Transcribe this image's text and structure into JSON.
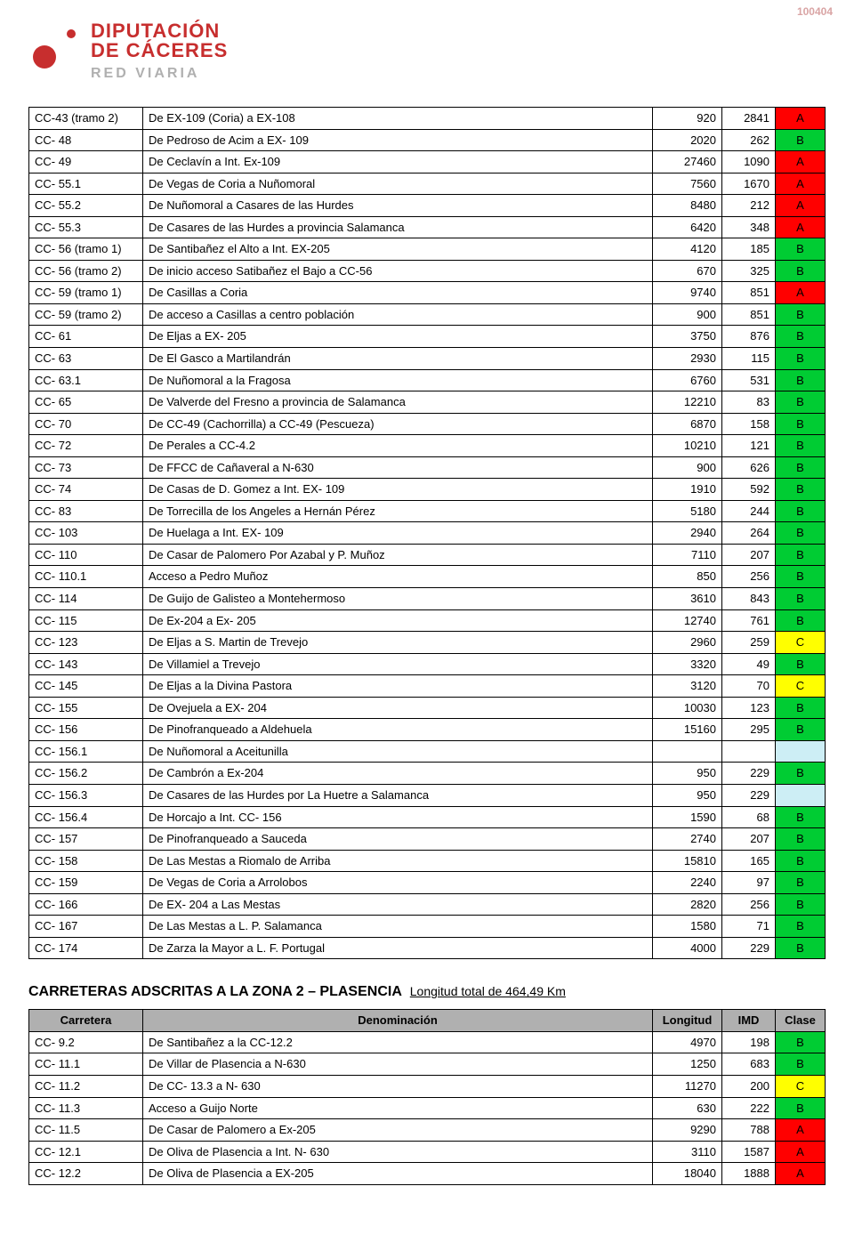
{
  "page_number": "100404",
  "header": {
    "brand_line1": "DIPUTACIÓN",
    "brand_line2": "DE CÁCERES",
    "subtitle": "RED VIARIA"
  },
  "colors": {
    "A": "#ff0000",
    "B": "#00cc33",
    "C": "#ffff00",
    "empty": "#cdeef5",
    "header_bg": "#b0b0b0"
  },
  "table1": {
    "rows": [
      {
        "code": "CC-43 (tramo 2)",
        "name": "De EX-109 (Coria) a EX-108",
        "long": "920",
        "imd": "2841",
        "class": "A"
      },
      {
        "code": "CC- 48",
        "name": "De Pedroso de Acim a EX- 109",
        "long": "2020",
        "imd": "262",
        "class": "B"
      },
      {
        "code": "CC- 49",
        "name": "De Ceclavín a Int. Ex-109",
        "long": "27460",
        "imd": "1090",
        "class": "A"
      },
      {
        "code": "CC- 55.1",
        "name": "De Vegas de Coria a Nuñomoral",
        "long": "7560",
        "imd": "1670",
        "class": "A"
      },
      {
        "code": "CC- 55.2",
        "name": "De Nuñomoral a Casares de las Hurdes",
        "long": "8480",
        "imd": "212",
        "class": "A"
      },
      {
        "code": "CC- 55.3",
        "name": "De Casares de las Hurdes a provincia Salamanca",
        "long": "6420",
        "imd": "348",
        "class": "A"
      },
      {
        "code": "CC- 56 (tramo 1)",
        "name": "De Santibañez el Alto a Int. EX-205",
        "long": "4120",
        "imd": "185",
        "class": "B"
      },
      {
        "code": "CC- 56 (tramo 2)",
        "name": "De inicio acceso Satibañez el Bajo a CC-56",
        "long": "670",
        "imd": "325",
        "class": "B"
      },
      {
        "code": "CC- 59 (tramo 1)",
        "name": "De Casillas a Coria",
        "long": "9740",
        "imd": "851",
        "class": "A"
      },
      {
        "code": "CC- 59 (tramo 2)",
        "name": "De acceso a Casillas a centro población",
        "long": "900",
        "imd": "851",
        "class": "B"
      },
      {
        "code": "CC- 61",
        "name": "De Eljas a EX- 205",
        "long": "3750",
        "imd": "876",
        "class": "B"
      },
      {
        "code": "CC- 63",
        "name": "De El Gasco a Martilandrán",
        "long": "2930",
        "imd": "115",
        "class": "B"
      },
      {
        "code": "CC- 63.1",
        "name": "De Nuñomoral a la Fragosa",
        "long": "6760",
        "imd": "531",
        "class": "B"
      },
      {
        "code": "CC- 65",
        "name": "De Valverde del Fresno a provincia de Salamanca",
        "long": "12210",
        "imd": "83",
        "class": "B"
      },
      {
        "code": "CC- 70",
        "name": "De CC-49 (Cachorrilla) a CC-49 (Pescueza)",
        "long": "6870",
        "imd": "158",
        "class": "B"
      },
      {
        "code": "CC- 72",
        "name": "De Perales a CC-4.2",
        "long": "10210",
        "imd": "121",
        "class": "B"
      },
      {
        "code": "CC- 73",
        "name": "De FFCC de Cañaveral a N-630",
        "long": "900",
        "imd": "626",
        "class": "B"
      },
      {
        "code": "CC- 74",
        "name": "De Casas de D. Gomez a Int. EX- 109",
        "long": "1910",
        "imd": "592",
        "class": "B"
      },
      {
        "code": "CC- 83",
        "name": "De Torrecilla de los Angeles a Hernán Pérez",
        "long": "5180",
        "imd": "244",
        "class": "B"
      },
      {
        "code": "CC- 103",
        "name": "De Huelaga a Int. EX- 109",
        "long": "2940",
        "imd": "264",
        "class": "B"
      },
      {
        "code": "CC- 110",
        "name": "De Casar de Palomero Por Azabal y P. Muñoz",
        "long": "7110",
        "imd": "207",
        "class": "B"
      },
      {
        "code": "CC- 110.1",
        "name": "Acceso a Pedro Muñoz",
        "long": "850",
        "imd": "256",
        "class": "B"
      },
      {
        "code": "CC- 114",
        "name": "De Guijo de Galisteo a Montehermoso",
        "long": "3610",
        "imd": "843",
        "class": "B"
      },
      {
        "code": "CC- 115",
        "name": "De Ex-204 a Ex- 205",
        "long": "12740",
        "imd": "761",
        "class": "B"
      },
      {
        "code": "CC- 123",
        "name": "De Eljas a S. Martin de Trevejo",
        "long": "2960",
        "imd": "259",
        "class": "C"
      },
      {
        "code": "CC- 143",
        "name": "De Villamiel a Trevejo",
        "long": "3320",
        "imd": "49",
        "class": "B"
      },
      {
        "code": "CC- 145",
        "name": "De Eljas a la Divina Pastora",
        "long": "3120",
        "imd": "70",
        "class": "C"
      },
      {
        "code": "CC- 155",
        "name": "De Ovejuela a EX- 204",
        "long": "10030",
        "imd": "123",
        "class": "B"
      },
      {
        "code": "CC- 156",
        "name": "De Pinofranqueado a Aldehuela",
        "long": "15160",
        "imd": "295",
        "class": "B"
      },
      {
        "code": "CC- 156.1",
        "name": "De Nuñomoral a Aceitunilla",
        "long": "",
        "imd": "",
        "class": ""
      },
      {
        "code": "CC- 156.2",
        "name": "De Cambrón a Ex-204",
        "long": "950",
        "imd": "229",
        "class": "B"
      },
      {
        "code": "CC- 156.3",
        "name": "De Casares de las Hurdes por La Huetre a Salamanca",
        "long": "950",
        "imd": "229",
        "class": ""
      },
      {
        "code": "CC- 156.4",
        "name": "De Horcajo a Int. CC- 156",
        "long": "1590",
        "imd": "68",
        "class": "B"
      },
      {
        "code": "CC- 157",
        "name": "De Pinofranqueado a Sauceda",
        "long": "2740",
        "imd": "207",
        "class": "B"
      },
      {
        "code": "CC- 158",
        "name": "De Las Mestas a Riomalo de Arriba",
        "long": "15810",
        "imd": "165",
        "class": "B"
      },
      {
        "code": "CC- 159",
        "name": "De Vegas de Coria a Arrolobos",
        "long": "2240",
        "imd": "97",
        "class": "B"
      },
      {
        "code": "CC- 166",
        "name": "De EX- 204 a Las Mestas",
        "long": "2820",
        "imd": "256",
        "class": "B"
      },
      {
        "code": "CC- 167",
        "name": "De Las Mestas a L. P. Salamanca",
        "long": "1580",
        "imd": "71",
        "class": "B"
      },
      {
        "code": "CC- 174",
        "name": "De Zarza la Mayor a L. F. Portugal",
        "long": "4000",
        "imd": "229",
        "class": "B"
      }
    ]
  },
  "section2": {
    "title": "CARRETERAS ADSCRITAS A LA ZONA 2 – PLASENCIA",
    "subtitle": "Longitud total de 464,49 Km",
    "headers": {
      "code": "Carretera",
      "name": "Denominación",
      "long": "Longitud",
      "imd": "IMD",
      "class": "Clase"
    },
    "rows": [
      {
        "code": "CC- 9.2",
        "name": "De Santibañez a la CC-12.2",
        "long": "4970",
        "imd": "198",
        "class": "B"
      },
      {
        "code": "CC- 11.1",
        "name": "De Villar de Plasencia a N-630",
        "long": "1250",
        "imd": "683",
        "class": "B"
      },
      {
        "code": "CC- 11.2",
        "name": "De CC- 13.3 a N- 630",
        "long": "11270",
        "imd": "200",
        "class": "C"
      },
      {
        "code": "CC- 11.3",
        "name": "Acceso a Guijo Norte",
        "long": "630",
        "imd": "222",
        "class": "B"
      },
      {
        "code": "CC- 11.5",
        "name": "De Casar de Palomero a Ex-205",
        "long": "9290",
        "imd": "788",
        "class": "A"
      },
      {
        "code": "CC- 12.1",
        "name": "De Oliva de Plasencia a Int. N- 630",
        "long": "3110",
        "imd": "1587",
        "class": "A"
      },
      {
        "code": "CC- 12.2",
        "name": "De Oliva de Plasencia a EX-205",
        "long": "18040",
        "imd": "1888",
        "class": "A"
      }
    ]
  }
}
